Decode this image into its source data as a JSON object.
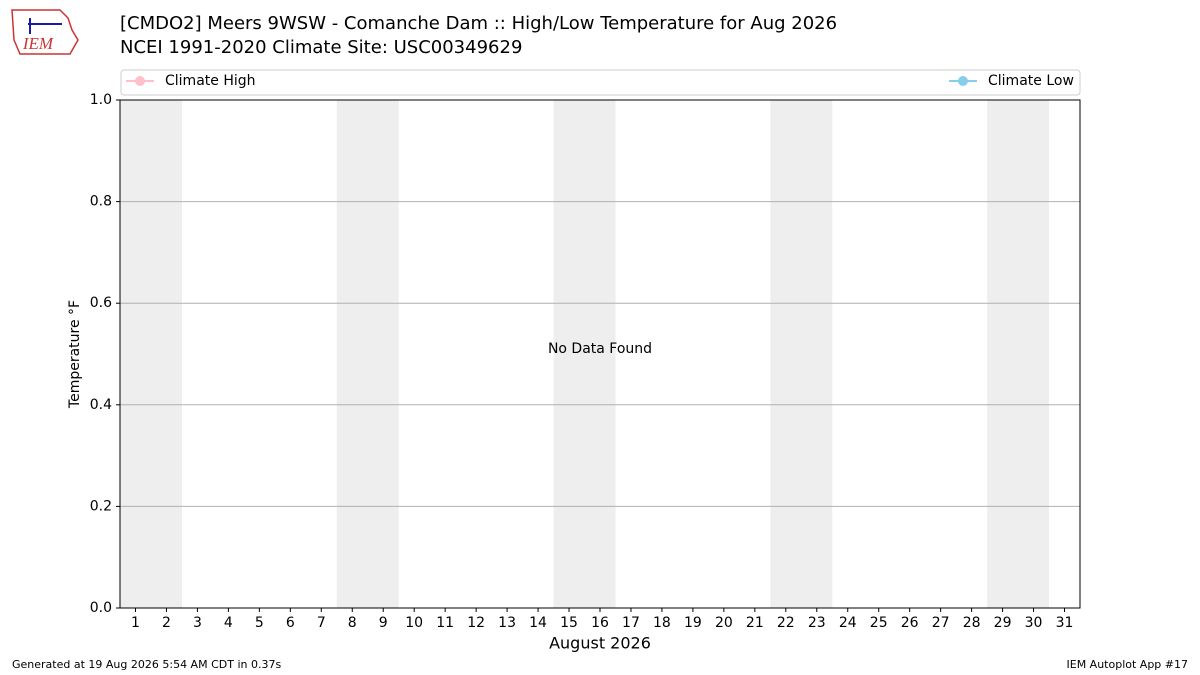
{
  "logo": "IEM",
  "footer": {
    "left": "Generated at 19 Aug 2026 5:54 AM CDT in 0.37s",
    "right": "IEM Autoplot App #17"
  },
  "chart_data": {
    "type": "line",
    "title": "[CMDO2] Meers 9WSW - Comanche Dam :: High/Low Temperature for Aug 2026",
    "subtitle": "NCEI 1991-2020 Climate Site: USC00349629",
    "xlabel": "August 2026",
    "ylabel": "Temperature °F",
    "annotation": "No Data Found",
    "x": [
      1,
      2,
      3,
      4,
      5,
      6,
      7,
      8,
      9,
      10,
      11,
      12,
      13,
      14,
      15,
      16,
      17,
      18,
      19,
      20,
      21,
      22,
      23,
      24,
      25,
      26,
      27,
      28,
      29,
      30,
      31
    ],
    "xlim": [
      0.5,
      31.5
    ],
    "xticks": [
      1,
      2,
      3,
      4,
      5,
      6,
      7,
      8,
      9,
      10,
      11,
      12,
      13,
      14,
      15,
      16,
      17,
      18,
      19,
      20,
      21,
      22,
      23,
      24,
      25,
      26,
      27,
      28,
      29,
      30,
      31
    ],
    "ylim": [
      0,
      1
    ],
    "yticks": [
      {
        "value": 0,
        "label": "0.0"
      },
      0.2,
      0.4,
      0.6,
      0.8,
      {
        "value": 1,
        "label": "1.0"
      }
    ],
    "grid": true,
    "legend": "top",
    "shaded_spans": [
      [
        0.5,
        2.5
      ],
      [
        7.5,
        9.5
      ],
      [
        14.5,
        16.5
      ],
      [
        21.5,
        23.5
      ],
      [
        28.5,
        30.5
      ]
    ],
    "shade_color": "#eeeeee",
    "series": [
      {
        "name": "Climate High",
        "color": "#ffc0cb",
        "values": [
          null,
          null,
          null,
          null,
          null,
          null,
          null,
          null,
          null,
          null,
          null,
          null,
          null,
          null,
          null,
          null,
          null,
          null,
          null,
          null,
          null,
          null,
          null,
          null,
          null,
          null,
          null,
          null,
          null,
          null,
          null
        ]
      },
      {
        "name": "Climate Low",
        "color": "#87ceeb",
        "values": [
          null,
          null,
          null,
          null,
          null,
          null,
          null,
          null,
          null,
          null,
          null,
          null,
          null,
          null,
          null,
          null,
          null,
          null,
          null,
          null,
          null,
          null,
          null,
          null,
          null,
          null,
          null,
          null,
          null,
          null,
          null
        ]
      }
    ]
  }
}
